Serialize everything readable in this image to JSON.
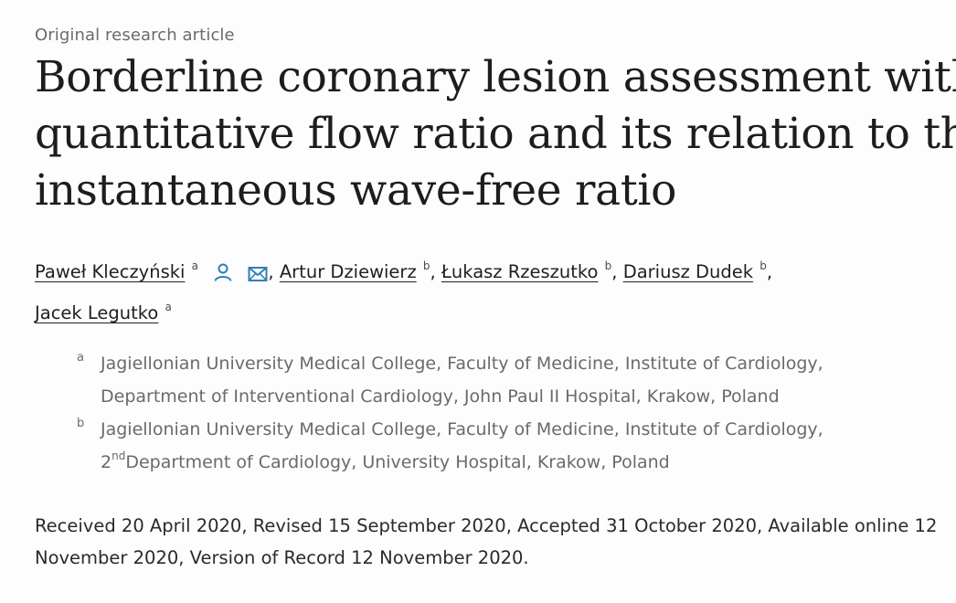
{
  "article_type": "Original research article",
  "title": {
    "line1": "Borderline coronary lesion assessment with",
    "line2": "quantitative flow ratio and its relation to the",
    "line3": "instantaneous wave-free ratio"
  },
  "authors": [
    {
      "name": "Paweł Kleczyński",
      "sup": "a",
      "icons": [
        "person-icon",
        "mail-icon"
      ]
    },
    {
      "name": "Artur Dziewierz",
      "sup": "b"
    },
    {
      "name": "Łukasz Rzeszutko",
      "sup": "b"
    },
    {
      "name": "Dariusz Dudek",
      "sup": "b"
    },
    {
      "name": "Jacek Legutko",
      "sup": "a"
    }
  ],
  "affiliations": [
    {
      "label": "a",
      "line1": "Jagiellonian University Medical College, Faculty of Medicine, Institute of Cardiology,",
      "line2": "Department of Interventional Cardiology, John Paul II Hospital, Krakow, Poland"
    },
    {
      "label": "b",
      "line1": "Jagiellonian University Medical College, Faculty of Medicine, Institute of Cardiology,",
      "line2_sup_prefix": "2",
      "line2_sup": "nd",
      "line2": "Department of Cardiology, University Hospital, Krakow, Poland"
    }
  ],
  "dates": "Received 20 April 2020, Revised 15 September 2020, Accepted 31 October 2020, Available online 12 November 2020, Version of Record 12 November 2020.",
  "colors": {
    "icon_blue": "#2e7fb8",
    "text": "#1f1f1f",
    "muted": "#6a6a6a"
  }
}
